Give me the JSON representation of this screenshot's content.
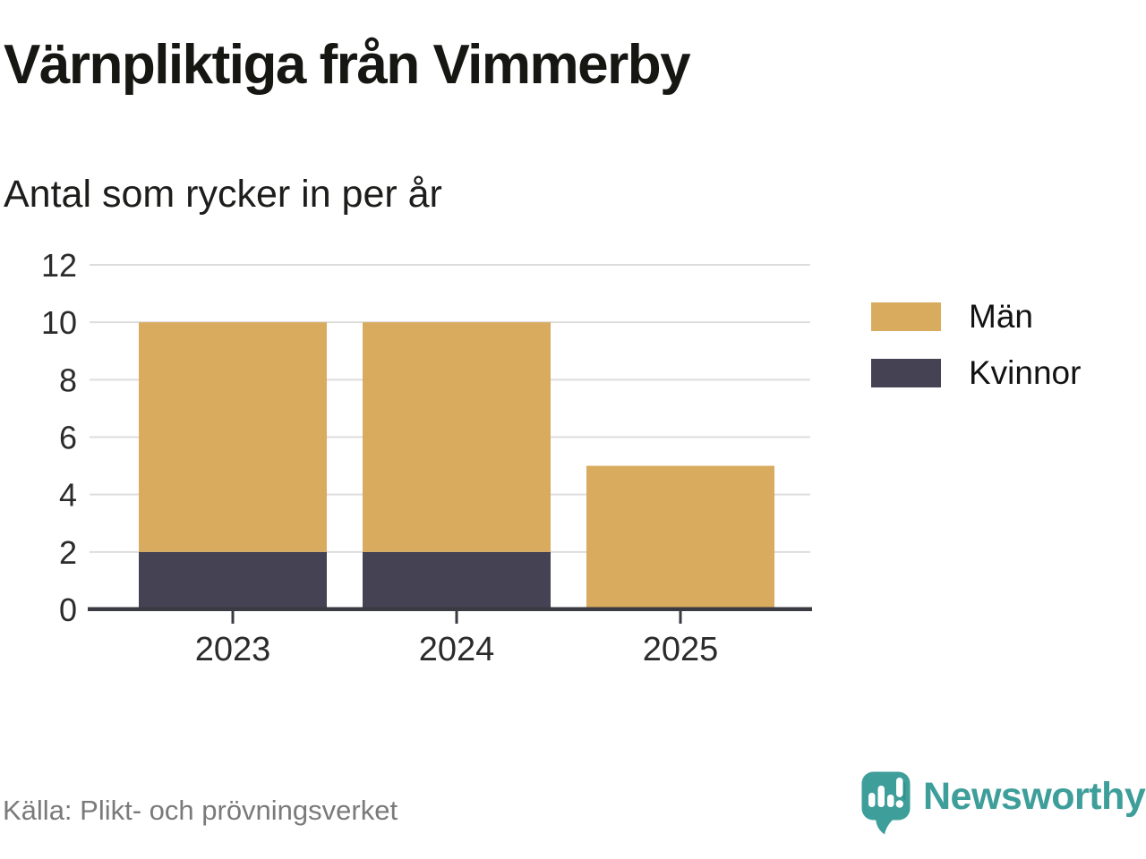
{
  "header": {
    "title": "Värnpliktiga från Vimmerby",
    "subtitle": "Antal som rycker in per år"
  },
  "chart_data": {
    "type": "bar",
    "stacked": true,
    "title": "Värnpliktiga från Vimmerby",
    "subtitle": "Antal som rycker in per år",
    "categories": [
      "2023",
      "2024",
      "2025"
    ],
    "series": [
      {
        "name": "Kvinnor",
        "color": "#444253",
        "values": [
          2,
          2,
          0
        ]
      },
      {
        "name": "Män",
        "color": "#D9AB5E",
        "values": [
          8,
          8,
          5
        ]
      }
    ],
    "stack_totals": [
      10,
      10,
      5
    ],
    "xlabel": "",
    "ylabel": "",
    "ylim": [
      0,
      12
    ],
    "yticks": [
      0,
      2,
      4,
      6,
      8,
      10,
      12
    ],
    "grid": "horizontal",
    "legend_position": "right",
    "legend": [
      {
        "label": "Män",
        "color": "#D9AB5E"
      },
      {
        "label": "Kvinnor",
        "color": "#444253"
      }
    ]
  },
  "footer": {
    "source": "Källa: Plikt- och prövningsverket",
    "brand": "Newsworthy"
  },
  "colors": {
    "bar_men": "#D9AB5E",
    "bar_women": "#444253",
    "gridline": "#dddddd",
    "axis": "#3a3a42",
    "tick_label": "#2b2b2b",
    "title": "#161613",
    "source_text": "#7a7a7a",
    "brand_teal": "#3d9e9a"
  }
}
